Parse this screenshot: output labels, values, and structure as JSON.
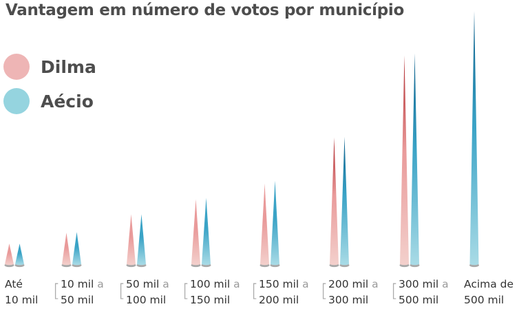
{
  "title": "Vantagem em número de votos por município",
  "legend": [
    {
      "name": "Dilma",
      "color": "#eeb5b5"
    },
    {
      "name": "Aécio",
      "color": "#95d4df"
    }
  ],
  "chart_data": {
    "type": "bar",
    "title": "Vantagem em número de votos por município",
    "categories": [
      {
        "line1": "Até",
        "line1_muted": "",
        "line2": "10 mil",
        "bracket": false
      },
      {
        "line1": "10 mil",
        "line1_muted": "a",
        "line2": "50 mil",
        "bracket": true
      },
      {
        "line1": "50 mil",
        "line1_muted": "a",
        "line2": "100 mil",
        "bracket": true
      },
      {
        "line1": "100 mil",
        "line1_muted": "a",
        "line2": "150 mil",
        "bracket": true
      },
      {
        "line1": "150 mil",
        "line1_muted": "a",
        "line2": "200 mil",
        "bracket": true
      },
      {
        "line1": "200 mil",
        "line1_muted": "a",
        "line2": "300 mil",
        "bracket": true
      },
      {
        "line1": "300 mil",
        "line1_muted": "a",
        "line2": "500 mil",
        "bracket": true
      },
      {
        "line1": "Acima de",
        "line1_muted": "",
        "line2": "500 mil",
        "bracket": false
      }
    ],
    "series": [
      {
        "name": "Dilma",
        "values": [
          30,
          46,
          73,
          95,
          118,
          185,
          305,
          null
        ]
      },
      {
        "name": "Aécio",
        "values": [
          30,
          47,
          73,
          97,
          122,
          186,
          308,
          370
        ]
      }
    ],
    "ylim": [
      0,
      370
    ],
    "colors": {
      "dilma_top": "#b02a2e",
      "dilma_mid": "#e99a9a",
      "dilma_base": "#f3d0cc",
      "aecio_top": "#0b5e8a",
      "aecio_mid": "#3aa3c6",
      "aecio_base": "#a9dbe6",
      "shadow": "#8c8c8c"
    }
  }
}
